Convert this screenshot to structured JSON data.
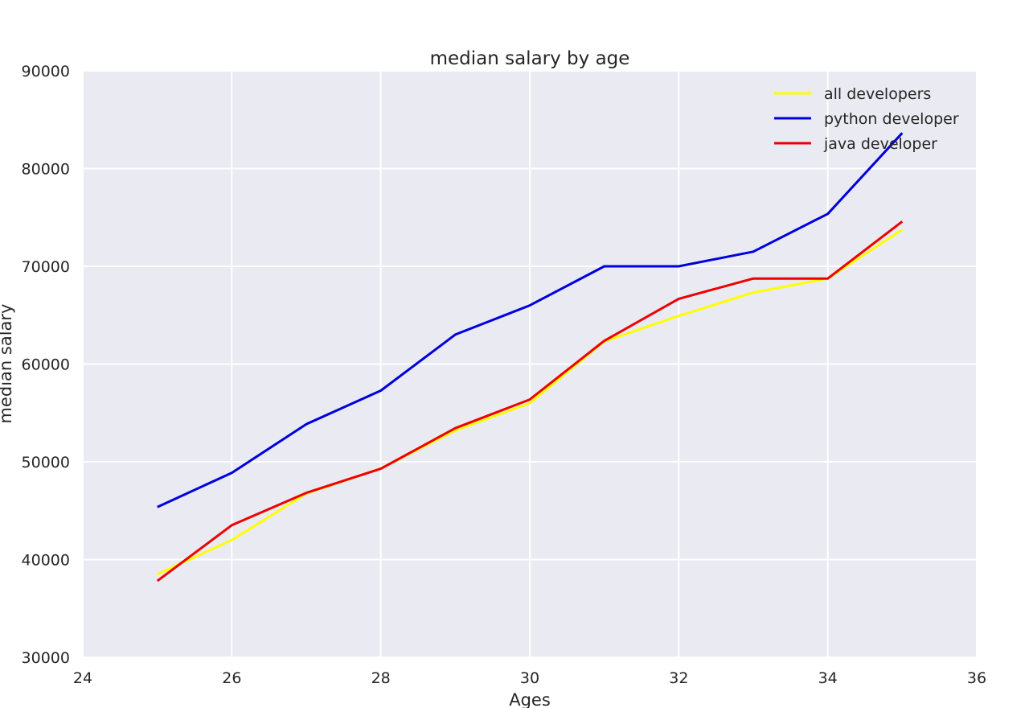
{
  "chart_data": {
    "type": "line",
    "title": "median salary by age",
    "xlabel": "Ages",
    "ylabel": "median salary",
    "xlim": [
      24,
      36
    ],
    "ylim": [
      30000,
      90000
    ],
    "xticks": [
      24,
      26,
      28,
      30,
      32,
      34,
      36
    ],
    "yticks": [
      30000,
      40000,
      50000,
      60000,
      70000,
      80000,
      90000
    ],
    "grid": true,
    "legend_position": "top-right",
    "x": [
      25,
      26,
      27,
      28,
      29,
      30,
      31,
      32,
      33,
      34,
      35
    ],
    "series": [
      {
        "name": "all developers",
        "color": "#ffff00",
        "values": [
          38496,
          42000,
          46752,
          49320,
          53200,
          56000,
          62316,
          64928,
          67317,
          68748,
          73752
        ]
      },
      {
        "name": "python developer",
        "color": "#0000dd",
        "values": [
          45372,
          48876,
          53850,
          57287,
          63016,
          65998,
          70003,
          70000,
          71496,
          75370,
          83640
        ]
      },
      {
        "name": "java developer",
        "color": "#ee0000",
        "values": [
          37810,
          43515,
          46823,
          49293,
          53437,
          56373,
          62375,
          66674,
          68745,
          68746,
          74583
        ]
      }
    ]
  }
}
